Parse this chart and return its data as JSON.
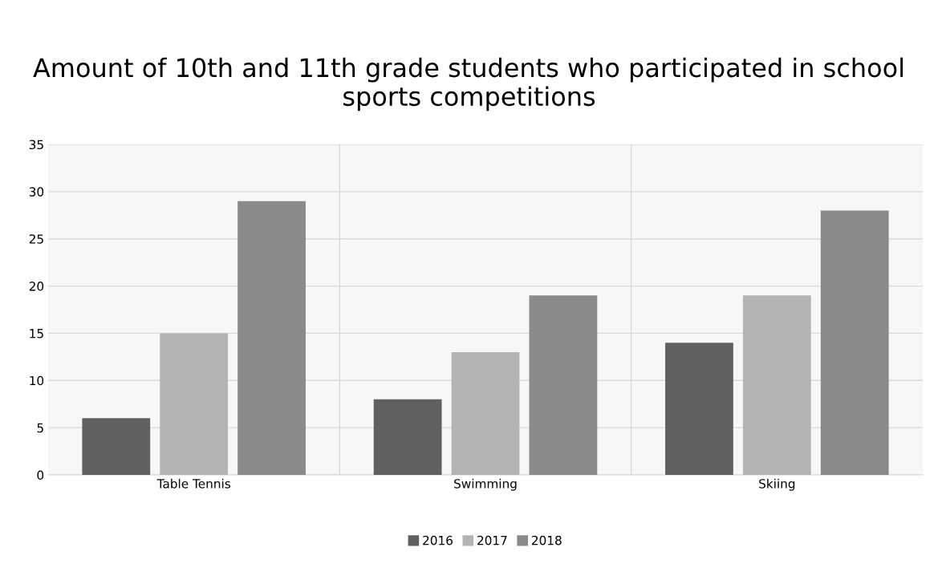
{
  "chart_data": {
    "type": "bar",
    "title": "Amount of 10th and 11th grade students who participated in school sports competitions",
    "categories": [
      "Table Tennis",
      "Swimming",
      "Skiing"
    ],
    "series": [
      {
        "name": "2016",
        "color": "#606060",
        "values": [
          6,
          8,
          14
        ]
      },
      {
        "name": "2017",
        "color": "#b3b3b3",
        "values": [
          15,
          13,
          19
        ]
      },
      {
        "name": "2018",
        "color": "#8a8a8a",
        "values": [
          29,
          19,
          28
        ]
      }
    ],
    "ylim": [
      0,
      35
    ],
    "yticks": [
      0,
      5,
      10,
      15,
      20,
      25,
      30,
      35
    ],
    "grid": true,
    "legend": "bottom"
  }
}
